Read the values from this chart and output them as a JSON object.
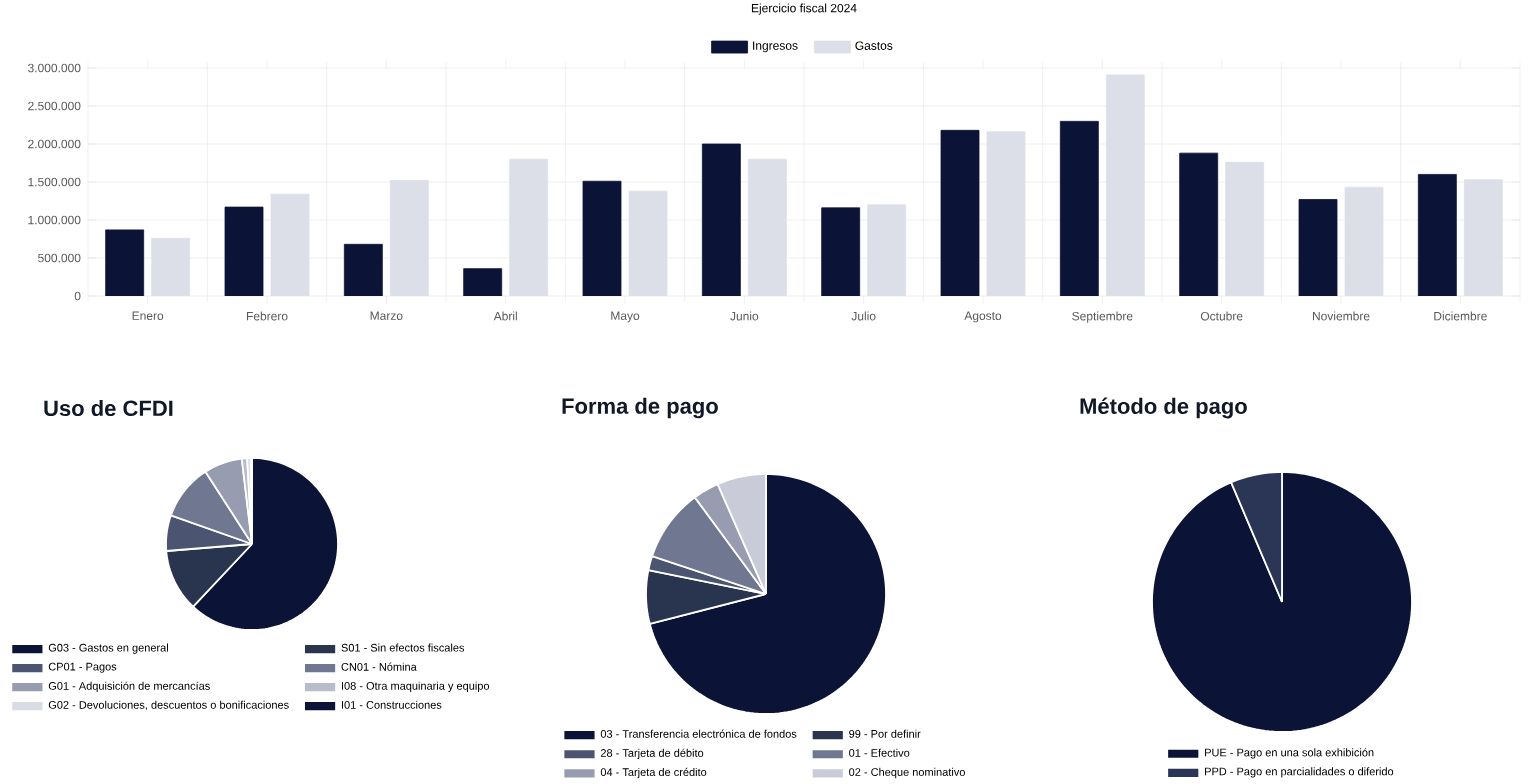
{
  "chart_data": [
    {
      "type": "bar",
      "title": "Ejercicio fiscal 2024",
      "categories": [
        "Enero",
        "Febrero",
        "Marzo",
        "Abril",
        "Mayo",
        "Junio",
        "Julio",
        "Agosto",
        "Septiembre",
        "Octubre",
        "Noviembre",
        "Diciembre"
      ],
      "series": [
        {
          "name": "Ingresos",
          "color": "#0b1437",
          "values": [
            870000,
            1170000,
            680000,
            360000,
            1510000,
            2000000,
            1160000,
            2180000,
            2300000,
            1880000,
            1270000,
            1600000
          ]
        },
        {
          "name": "Gastos",
          "color": "#dcdfe8",
          "values": [
            760000,
            1340000,
            1520000,
            1800000,
            1380000,
            1800000,
            1200000,
            2160000,
            2910000,
            1760000,
            1430000,
            1530000
          ]
        }
      ],
      "ylim": [
        0,
        3000000
      ],
      "yticks": [
        {
          "value": 0,
          "label": "0"
        },
        {
          "value": 500000,
          "label": "500.000"
        },
        {
          "value": 1000000,
          "label": "1.000.000"
        },
        {
          "value": 1500000,
          "label": "1.500.000"
        },
        {
          "value": 2000000,
          "label": "2.000.000"
        },
        {
          "value": 2500000,
          "label": "2.500.000"
        },
        {
          "value": 3000000,
          "label": "3.000.000"
        }
      ],
      "grid": true,
      "legend": "top"
    },
    {
      "type": "pie",
      "title": "Uso de CFDI",
      "categories": [
        "G03 - Gastos en general",
        "S01 - Sin efectos fiscales",
        "CP01 - Pagos",
        "CN01 - Nómina",
        "G01 - Adquisición de mercancías",
        "I08 - Otra maquinaria y equipo",
        "G02 - Devoluciones, descuentos o bonificaciones",
        "I01 - Construcciones"
      ],
      "values": [
        62,
        11.7,
        6.7,
        10.5,
        7.2,
        1,
        0.7,
        0.2
      ],
      "colors": [
        "#0b1437",
        "#29344f",
        "#4b5471",
        "#6f7791",
        "#979cb0",
        "#b9bdcb",
        "#d9dce4",
        "#0b1437"
      ],
      "legend": "bottom"
    },
    {
      "type": "pie",
      "title": "Forma de pago",
      "categories": [
        "03 - Transferencia electrónica de fondos",
        "99 - Por definir",
        "28 - Tarjeta de débito",
        "01 - Efectivo",
        "04 - Tarjeta de crédito",
        "02 - Cheque nominativo"
      ],
      "values": [
        71,
        7.2,
        1.9,
        9.8,
        3.5,
        6.6
      ],
      "colors": [
        "#0b1437",
        "#29344f",
        "#4b5471",
        "#6f7791",
        "#979cb0",
        "#c9ccd8"
      ],
      "legend": "bottom"
    },
    {
      "type": "pie",
      "title": "Método de pago",
      "categories": [
        "PUE - Pago en una sola exhibición",
        "PPD - Pago en parcialidades o diferido"
      ],
      "values": [
        93.6,
        6.4
      ],
      "colors": [
        "#0b1437",
        "#2b3656"
      ],
      "legend": "bottom"
    }
  ]
}
